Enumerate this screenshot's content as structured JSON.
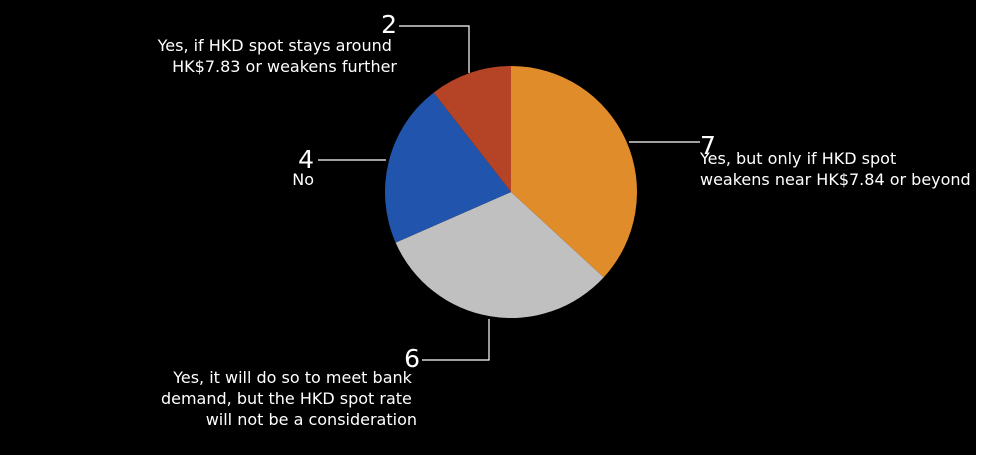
{
  "chart_data": {
    "type": "pie",
    "title": "",
    "slices": [
      {
        "value": 7,
        "value_label": "7",
        "label_lines": [
          "Yes, but only if HKD spot",
          "weakens near HK$7.84 or beyond"
        ],
        "color": "#e08c2a"
      },
      {
        "value": 6,
        "value_label": "6",
        "label_lines": [
          "Yes, it will do so to meet bank",
          "demand, but the HKD spot rate",
          "will not be a consideration"
        ],
        "color": "#c0c0c0"
      },
      {
        "value": 4,
        "value_label": "4",
        "label_lines": [
          "No"
        ],
        "color": "#2154ad"
      },
      {
        "value": 2,
        "value_label": "2",
        "label_lines": [
          "Yes, if HKD spot stays around",
          "HK$7.83 or weakens further"
        ],
        "color": "#b54325"
      }
    ],
    "start": "12 o'clock",
    "direction": "clockwise",
    "legend": "none"
  }
}
